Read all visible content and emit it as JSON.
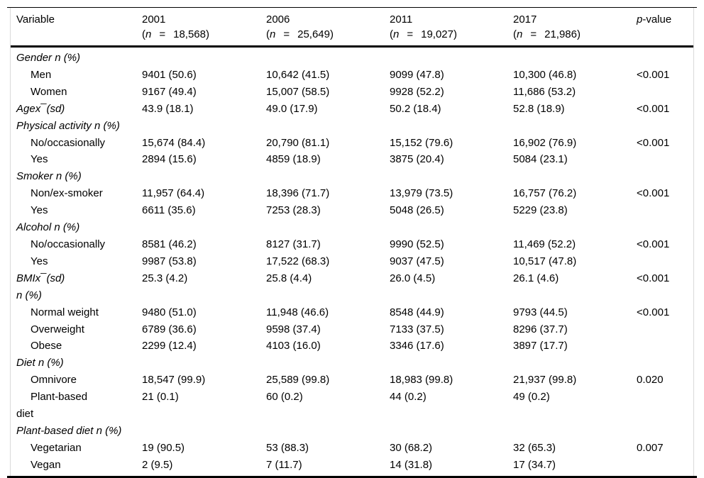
{
  "table": {
    "header": {
      "variable_label": "Variable",
      "n_open": "(",
      "n_symbol": "n",
      "equals": "=",
      "n_close": ")",
      "pvalue_italic": "p",
      "pvalue_rest": "-value",
      "year_columns": [
        {
          "year": "2001",
          "n": "18,568"
        },
        {
          "year": "2006",
          "n": "25,649"
        },
        {
          "year": "2011",
          "n": "19,027"
        },
        {
          "year": "2017",
          "n": "21,986"
        }
      ]
    },
    "rows": [
      {
        "label": "Gender n (%)",
        "style": "group",
        "values": [
          "",
          "",
          "",
          ""
        ],
        "p": ""
      },
      {
        "label": "Men",
        "style": "item",
        "values": [
          "9401 (50.6)",
          "10,642 (41.5)",
          "9099 (47.8)",
          "10,300 (46.8)"
        ],
        "p": "<0.001"
      },
      {
        "label": "Women",
        "style": "item",
        "values": [
          "9167 (49.4)",
          "15,007 (58.5)",
          "9928 (52.2)",
          "11,686 (53.2)"
        ],
        "p": ""
      },
      {
        "label": "Agex¯(sd)",
        "style": "group",
        "values": [
          "43.9 (18.1)",
          "49.0 (17.9)",
          "50.2 (18.4)",
          "52.8 (18.9)"
        ],
        "p": "<0.001"
      },
      {
        "label": "Physical activity n (%)",
        "style": "group",
        "values": [
          "",
          "",
          "",
          ""
        ],
        "p": ""
      },
      {
        "label": "No/occasionally",
        "style": "item",
        "values": [
          "15,674 (84.4)",
          "20,790 (81.1)",
          "15,152 (79.6)",
          "16,902 (76.9)"
        ],
        "p": "<0.001"
      },
      {
        "label": "Yes",
        "style": "item",
        "values": [
          "2894 (15.6)",
          "4859 (18.9)",
          "3875 (20.4)",
          "5084 (23.1)"
        ],
        "p": ""
      },
      {
        "label": "Smoker n (%)",
        "style": "group",
        "values": [
          "",
          "",
          "",
          ""
        ],
        "p": ""
      },
      {
        "label": "Non/ex-smoker",
        "style": "item",
        "values": [
          "11,957 (64.4)",
          "18,396 (71.7)",
          "13,979 (73.5)",
          "16,757 (76.2)"
        ],
        "p": "<0.001"
      },
      {
        "label": "Yes",
        "style": "item",
        "values": [
          "6611 (35.6)",
          "7253 (28.3)",
          "5048 (26.5)",
          "5229 (23.8)"
        ],
        "p": ""
      },
      {
        "label": "Alcohol n (%)",
        "style": "group",
        "values": [
          "",
          "",
          "",
          ""
        ],
        "p": ""
      },
      {
        "label": "No/occasionally",
        "style": "item",
        "values": [
          "8581 (46.2)",
          "8127 (31.7)",
          "9990 (52.5)",
          "11,469 (52.2)"
        ],
        "p": "<0.001"
      },
      {
        "label": "Yes",
        "style": "item",
        "values": [
          "9987 (53.8)",
          "17,522 (68.3)",
          "9037 (47.5)",
          "10,517 (47.8)"
        ],
        "p": ""
      },
      {
        "label": "BMIx¯(sd)",
        "style": "group",
        "values": [
          "25.3 (4.2)",
          "25.8 (4.4)",
          "26.0 (4.5)",
          "26.1 (4.6)"
        ],
        "p": "<0.001"
      },
      {
        "label": "n (%)",
        "style": "group",
        "values": [
          "",
          "",
          "",
          ""
        ],
        "p": ""
      },
      {
        "label": "Normal weight",
        "style": "item",
        "values": [
          "9480 (51.0)",
          "11,948 (46.6)",
          "8548 (44.9)",
          "9793 (44.5)"
        ],
        "p": "<0.001"
      },
      {
        "label": "Overweight",
        "style": "item",
        "values": [
          "6789 (36.6)",
          "9598 (37.4)",
          "7133 (37.5)",
          "8296 (37.7)"
        ],
        "p": ""
      },
      {
        "label": "Obese",
        "style": "item",
        "values": [
          "2299 (12.4)",
          "4103 (16.0)",
          "3346 (17.6)",
          "3897 (17.7)"
        ],
        "p": ""
      },
      {
        "label": "Diet n (%)",
        "style": "group",
        "values": [
          "",
          "",
          "",
          ""
        ],
        "p": ""
      },
      {
        "label": "Omnivore",
        "style": "item",
        "values": [
          "18,547 (99.9)",
          "25,589 (99.8)",
          "18,983 (99.8)",
          "21,937 (99.8)"
        ],
        "p": "0.020"
      },
      {
        "label": "Plant-based",
        "style": "item",
        "values": [
          "21 (0.1)",
          "60 (0.2)",
          "44 (0.2)",
          "49 (0.2)"
        ],
        "p": ""
      },
      {
        "label": "diet",
        "style": "continuation",
        "values": [
          "",
          "",
          "",
          ""
        ],
        "p": ""
      },
      {
        "label": "Plant-based diet n (%)",
        "style": "group",
        "values": [
          "",
          "",
          "",
          ""
        ],
        "p": ""
      },
      {
        "label": "Vegetarian",
        "style": "item",
        "values": [
          "19 (90.5)",
          "53 (88.3)",
          "30 (68.2)",
          "32 (65.3)"
        ],
        "p": "0.007"
      },
      {
        "label": "Vegan",
        "style": "item",
        "values": [
          "2 (9.5)",
          "7 (11.7)",
          "14 (31.8)",
          "17 (34.7)"
        ],
        "p": ""
      }
    ]
  },
  "colors": {
    "rule": "#000000",
    "side_border": "#d9d9d9",
    "text": "#000000",
    "background": "#ffffff"
  }
}
